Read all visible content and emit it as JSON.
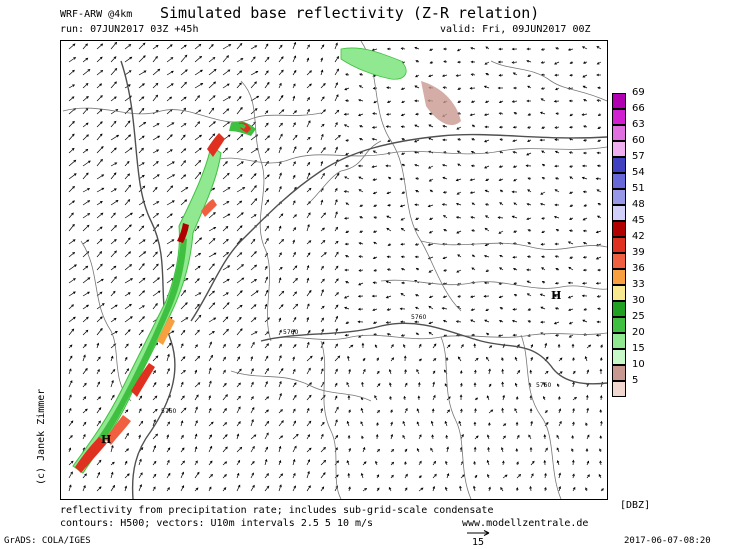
{
  "header": {
    "model": "WRF-ARW @4km",
    "title": "Simulated base reflectivity (Z-R relation)",
    "run": "run: 07JUN2017 03Z +45h",
    "valid": "valid: Fri, 09JUN2017 00Z"
  },
  "copyright": "(c) Janek Zimmer",
  "footer": {
    "line1": "reflectivity from precipitation rate; includes sub-grid-scale condensate",
    "line2": "contours: H500; vectors: U10m intervals 2.5 5 10 m/s",
    "website": "www.modellzentrale.de",
    "grads": "GrADS: COLA/IGES",
    "vector_scale": "15",
    "timestamp": "2017-06-07-08:20"
  },
  "map_labels": {
    "high_east": "H",
    "high_southwest": "H",
    "contour_a": "5760",
    "contour_b": "5760",
    "contour_c": "5760",
    "contour_d": "5760"
  },
  "colorbar": {
    "unit": "[DBZ]",
    "levels": [
      "69",
      "66",
      "63",
      "60",
      "57",
      "54",
      "51",
      "48",
      "45",
      "42",
      "39",
      "36",
      "33",
      "30",
      "25",
      "20",
      "15",
      "10",
      "5"
    ],
    "colors": [
      "#b000b0",
      "#d020d0",
      "#e070e0",
      "#f0b0f0",
      "#4040c0",
      "#6868d8",
      "#9898e8",
      "#d0d0f8",
      "#b00000",
      "#e03020",
      "#f06040",
      "#f8a040",
      "#f8e890",
      "#20a020",
      "#40c040",
      "#90e890",
      "#c8f8c8",
      "#c89890",
      "#f0d8d0"
    ]
  }
}
